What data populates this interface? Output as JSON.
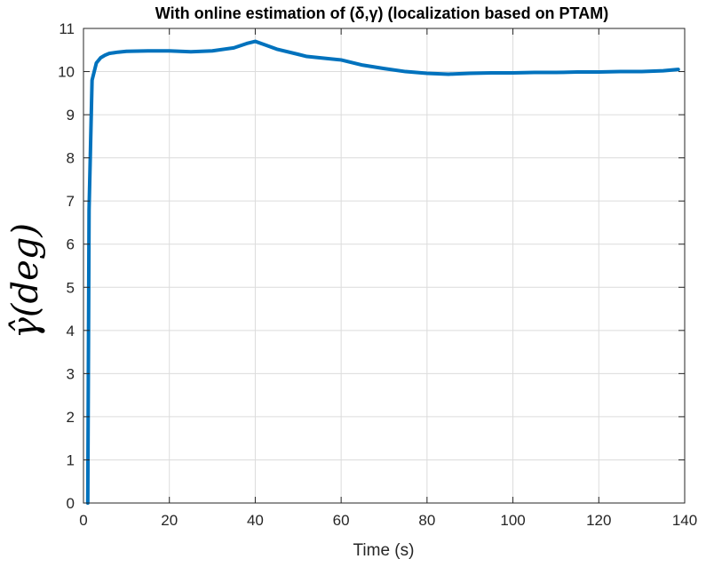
{
  "chart_data": {
    "type": "line",
    "title": "With online estimation of (δ,γ) (localization based on PTAM)",
    "xlabel": "Time (s)",
    "ylabel": "γ̂(deg)",
    "xlim": [
      0,
      140
    ],
    "ylim": [
      0,
      11
    ],
    "xticks": [
      "0",
      "20",
      "40",
      "60",
      "80",
      "100",
      "120",
      "140"
    ],
    "yticks": [
      "0",
      "1",
      "2",
      "3",
      "4",
      "5",
      "6",
      "7",
      "8",
      "9",
      "10",
      "11"
    ],
    "grid": true,
    "line_color": "#0072bd",
    "series": [
      {
        "x": [
          1.0,
          1.3,
          2.0,
          3.0,
          4.0,
          5.0,
          6.0,
          8.0,
          10.0,
          15.0,
          20.0,
          25.0,
          30.0,
          35.0,
          38.0,
          40.0,
          42.0,
          45.0,
          50.0,
          52.0,
          55.0,
          60.0,
          65.0,
          70.0,
          75.0,
          80.0,
          85.0,
          90.0,
          95.0,
          100.0,
          105.0,
          110.0,
          115.0,
          120.0,
          125.0,
          130.0,
          135.0,
          138.5
        ],
        "y": [
          0.0,
          6.8,
          9.8,
          10.2,
          10.32,
          10.38,
          10.42,
          10.45,
          10.47,
          10.48,
          10.48,
          10.46,
          10.48,
          10.55,
          10.65,
          10.7,
          10.63,
          10.52,
          10.4,
          10.35,
          10.32,
          10.27,
          10.15,
          10.07,
          10.0,
          9.96,
          9.94,
          9.96,
          9.97,
          9.97,
          9.98,
          9.98,
          9.99,
          9.99,
          10.0,
          10.0,
          10.02,
          10.05
        ]
      }
    ]
  }
}
